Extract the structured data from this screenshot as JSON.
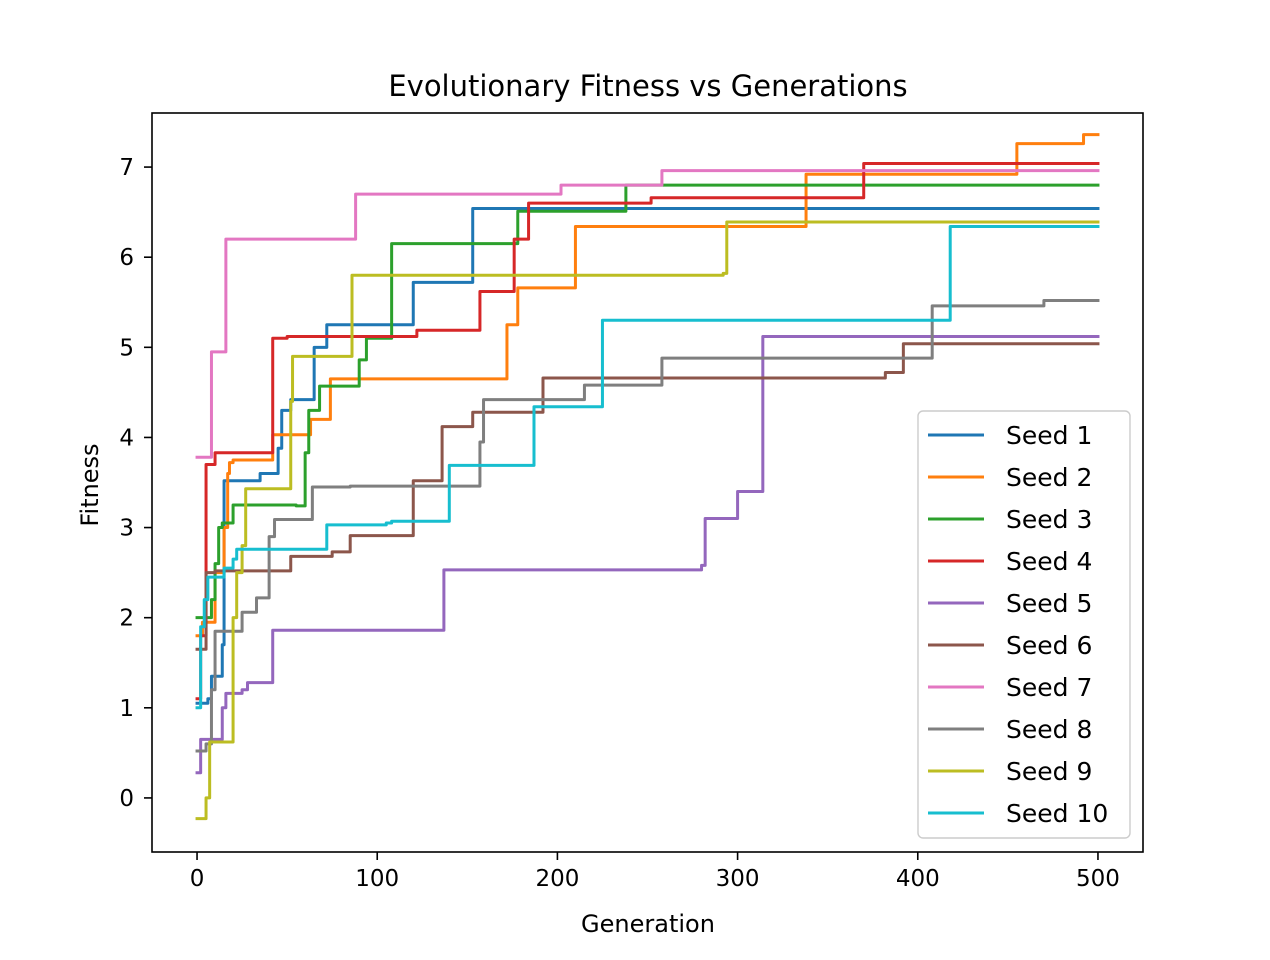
{
  "chart_data": {
    "type": "line",
    "title": "Evolutionary Fitness vs Generations",
    "xlabel": "Generation",
    "ylabel": "Fitness",
    "xlim": [
      -25,
      525
    ],
    "ylim": [
      -0.6,
      7.6
    ],
    "xticks": [
      0,
      100,
      200,
      300,
      400,
      500
    ],
    "yticks": [
      0,
      1,
      2,
      3,
      4,
      5,
      6,
      7
    ],
    "grid": false,
    "legend_position": "lower right",
    "series": [
      {
        "name": "Seed 1",
        "color": "#1f77b4",
        "step": true,
        "points": [
          [
            0,
            1.05
          ],
          [
            6,
            1.1
          ],
          [
            8,
            1.35
          ],
          [
            14,
            1.7
          ],
          [
            15,
            3.52
          ],
          [
            35,
            3.6
          ],
          [
            45,
            3.88
          ],
          [
            47,
            4.3
          ],
          [
            52,
            4.42
          ],
          [
            65,
            5.0
          ],
          [
            72,
            5.25
          ],
          [
            118,
            5.25
          ],
          [
            120,
            5.72
          ],
          [
            152,
            5.72
          ],
          [
            153,
            6.54
          ],
          [
            500,
            6.54
          ]
        ]
      },
      {
        "name": "Seed 2",
        "color": "#ff7f0e",
        "step": true,
        "points": [
          [
            0,
            1.8
          ],
          [
            3,
            1.95
          ],
          [
            10,
            2.5
          ],
          [
            15,
            3.0
          ],
          [
            17,
            3.6
          ],
          [
            18,
            3.72
          ],
          [
            20,
            3.75
          ],
          [
            42,
            4.03
          ],
          [
            60,
            4.03
          ],
          [
            63,
            4.2
          ],
          [
            66,
            4.2
          ],
          [
            74,
            4.65
          ],
          [
            170,
            4.65
          ],
          [
            172,
            5.25
          ],
          [
            176,
            5.25
          ],
          [
            178,
            5.66
          ],
          [
            208,
            5.66
          ],
          [
            210,
            6.34
          ],
          [
            310,
            6.34
          ],
          [
            312,
            6.34
          ],
          [
            338,
            6.92
          ],
          [
            455,
            7.26
          ],
          [
            490,
            7.26
          ],
          [
            492,
            7.36
          ],
          [
            500,
            7.36
          ]
        ]
      },
      {
        "name": "Seed 3",
        "color": "#2ca02c",
        "step": true,
        "points": [
          [
            0,
            2.0
          ],
          [
            8,
            2.2
          ],
          [
            10,
            2.6
          ],
          [
            12,
            3.0
          ],
          [
            14,
            3.05
          ],
          [
            20,
            3.25
          ],
          [
            40,
            3.25
          ],
          [
            55,
            3.24
          ],
          [
            60,
            3.83
          ],
          [
            62,
            4.3
          ],
          [
            68,
            4.57
          ],
          [
            90,
            4.86
          ],
          [
            94,
            5.1
          ],
          [
            106,
            5.1
          ],
          [
            108,
            6.15
          ],
          [
            175,
            6.15
          ],
          [
            178,
            6.51
          ],
          [
            236,
            6.51
          ],
          [
            238,
            6.8
          ],
          [
            500,
            6.8
          ]
        ]
      },
      {
        "name": "Seed 4",
        "color": "#d62728",
        "step": true,
        "points": [
          [
            0,
            1.1
          ],
          [
            2,
            1.8
          ],
          [
            5,
            3.7
          ],
          [
            10,
            3.83
          ],
          [
            40,
            3.83
          ],
          [
            42,
            5.1
          ],
          [
            50,
            5.12
          ],
          [
            120,
            5.12
          ],
          [
            122,
            5.19
          ],
          [
            155,
            5.19
          ],
          [
            157,
            5.62
          ],
          [
            174,
            5.62
          ],
          [
            176,
            6.2
          ],
          [
            180,
            6.2
          ],
          [
            184,
            6.6
          ],
          [
            250,
            6.6
          ],
          [
            252,
            6.66
          ],
          [
            368,
            6.66
          ],
          [
            370,
            7.04
          ],
          [
            500,
            7.04
          ]
        ]
      },
      {
        "name": "Seed 5",
        "color": "#9467bd",
        "step": true,
        "points": [
          [
            0,
            0.28
          ],
          [
            2,
            0.65
          ],
          [
            12,
            0.65
          ],
          [
            14,
            1.0
          ],
          [
            16,
            1.16
          ],
          [
            25,
            1.2
          ],
          [
            28,
            1.28
          ],
          [
            40,
            1.28
          ],
          [
            42,
            1.86
          ],
          [
            135,
            1.86
          ],
          [
            137,
            2.53
          ],
          [
            276,
            2.53
          ],
          [
            280,
            2.58
          ],
          [
            282,
            3.1
          ],
          [
            298,
            3.1
          ],
          [
            300,
            3.4
          ],
          [
            310,
            3.4
          ],
          [
            314,
            5.12
          ],
          [
            500,
            5.12
          ]
        ]
      },
      {
        "name": "Seed 6",
        "color": "#8c564b",
        "step": true,
        "points": [
          [
            0,
            1.65
          ],
          [
            5,
            2.5
          ],
          [
            10,
            2.52
          ],
          [
            50,
            2.52
          ],
          [
            52,
            2.68
          ],
          [
            72,
            2.68
          ],
          [
            75,
            2.73
          ],
          [
            82,
            2.73
          ],
          [
            85,
            2.91
          ],
          [
            118,
            2.91
          ],
          [
            120,
            3.52
          ],
          [
            133,
            3.52
          ],
          [
            136,
            4.12
          ],
          [
            150,
            4.12
          ],
          [
            153,
            4.28
          ],
          [
            190,
            4.28
          ],
          [
            192,
            4.66
          ],
          [
            378,
            4.66
          ],
          [
            382,
            4.72
          ],
          [
            390,
            4.72
          ],
          [
            392,
            5.04
          ],
          [
            500,
            5.04
          ]
        ]
      },
      {
        "name": "Seed 7",
        "color": "#e377c2",
        "step": true,
        "points": [
          [
            0,
            3.78
          ],
          [
            5,
            3.78
          ],
          [
            8,
            4.95
          ],
          [
            15,
            4.95
          ],
          [
            16,
            6.2
          ],
          [
            85,
            6.2
          ],
          [
            88,
            6.7
          ],
          [
            200,
            6.7
          ],
          [
            202,
            6.8
          ],
          [
            240,
            6.8
          ],
          [
            258,
            6.96
          ],
          [
            500,
            6.96
          ]
        ]
      },
      {
        "name": "Seed 8",
        "color": "#7f7f7f",
        "step": true,
        "points": [
          [
            0,
            0.52
          ],
          [
            5,
            0.6
          ],
          [
            8,
            1.2
          ],
          [
            10,
            1.85
          ],
          [
            22,
            1.85
          ],
          [
            25,
            2.06
          ],
          [
            30,
            2.06
          ],
          [
            33,
            2.22
          ],
          [
            38,
            2.22
          ],
          [
            40,
            2.9
          ],
          [
            43,
            3.09
          ],
          [
            60,
            3.09
          ],
          [
            64,
            3.45
          ],
          [
            85,
            3.46
          ],
          [
            155,
            3.46
          ],
          [
            157,
            3.95
          ],
          [
            159,
            4.42
          ],
          [
            212,
            4.42
          ],
          [
            215,
            4.58
          ],
          [
            256,
            4.58
          ],
          [
            258,
            4.88
          ],
          [
            405,
            4.88
          ],
          [
            408,
            5.46
          ],
          [
            465,
            5.46
          ],
          [
            470,
            5.52
          ],
          [
            500,
            5.52
          ]
        ]
      },
      {
        "name": "Seed 9",
        "color": "#bcbd22",
        "step": true,
        "points": [
          [
            0,
            -0.23
          ],
          [
            4,
            -0.23
          ],
          [
            5,
            0.0
          ],
          [
            7,
            0.62
          ],
          [
            18,
            0.62
          ],
          [
            20,
            2.0
          ],
          [
            22,
            2.5
          ],
          [
            25,
            2.8
          ],
          [
            27,
            3.43
          ],
          [
            50,
            3.43
          ],
          [
            52,
            4.4
          ],
          [
            53,
            4.9
          ],
          [
            85,
            4.9
          ],
          [
            86,
            5.8
          ],
          [
            292,
            5.82
          ],
          [
            294,
            6.39
          ],
          [
            500,
            6.39
          ]
        ]
      },
      {
        "name": "Seed 10",
        "color": "#17becf",
        "step": true,
        "points": [
          [
            0,
            1.0
          ],
          [
            2,
            1.9
          ],
          [
            4,
            2.2
          ],
          [
            6,
            2.45
          ],
          [
            15,
            2.55
          ],
          [
            20,
            2.65
          ],
          [
            22,
            2.76
          ],
          [
            70,
            2.76
          ],
          [
            72,
            3.03
          ],
          [
            105,
            3.05
          ],
          [
            108,
            3.07
          ],
          [
            138,
            3.07
          ],
          [
            140,
            3.69
          ],
          [
            185,
            3.69
          ],
          [
            187,
            4.34
          ],
          [
            223,
            4.34
          ],
          [
            225,
            5.3
          ],
          [
            415,
            5.3
          ],
          [
            418,
            6.34
          ],
          [
            500,
            6.34
          ]
        ]
      }
    ]
  }
}
